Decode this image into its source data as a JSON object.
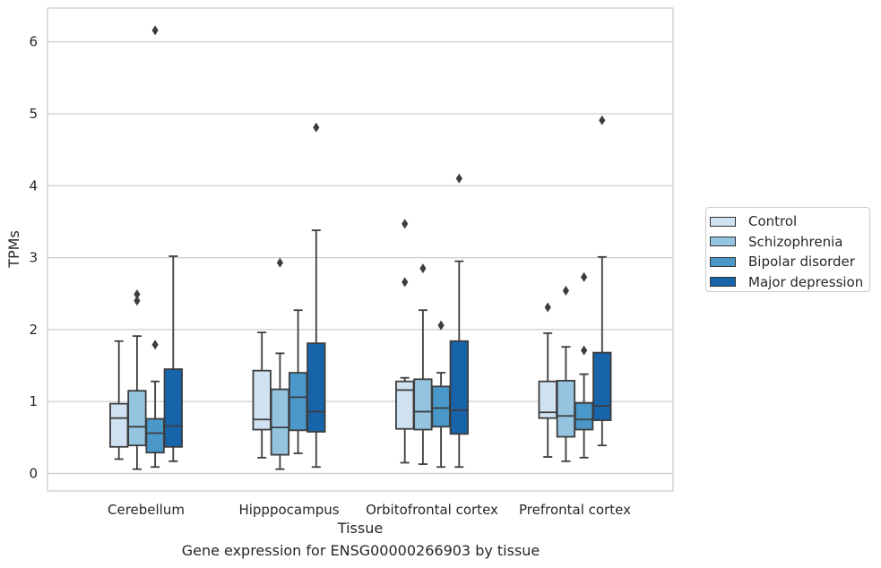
{
  "chart_data": {
    "type": "box",
    "caption": "Gene expression for ENSG00000266903 by tissue",
    "xlabel": "Tissue",
    "ylabel": "TPMs",
    "ylim": [
      -0.22,
      6.48
    ],
    "yticks": [
      0,
      1,
      2,
      3,
      4,
      5,
      6
    ],
    "grid": true,
    "legend_position": "right",
    "categories": [
      "Cerebellum",
      "Hipppocampus",
      "Orbitofrontal cortex",
      "Prefrontal cortex"
    ],
    "series": [
      {
        "name": "Control",
        "color": "#d0e1f2",
        "boxes": [
          {
            "whisker_low": 0.2,
            "q1": 0.37,
            "median": 0.77,
            "q3": 0.97,
            "whisker_high": 1.84,
            "outliers": []
          },
          {
            "whisker_low": 0.22,
            "q1": 0.61,
            "median": 0.75,
            "q3": 1.43,
            "whisker_high": 1.96,
            "outliers": []
          },
          {
            "whisker_low": 0.15,
            "q1": 0.62,
            "median": 1.16,
            "q3": 1.28,
            "whisker_high": 1.33,
            "outliers": [
              2.66,
              3.47
            ]
          },
          {
            "whisker_low": 0.23,
            "q1": 0.77,
            "median": 0.85,
            "q3": 1.28,
            "whisker_high": 1.95,
            "outliers": [
              2.31
            ]
          }
        ]
      },
      {
        "name": "Schizophrenia",
        "color": "#94c4df",
        "boxes": [
          {
            "whisker_low": 0.06,
            "q1": 0.39,
            "median": 0.65,
            "q3": 1.15,
            "whisker_high": 1.91,
            "outliers": [
              2.4,
              2.49
            ]
          },
          {
            "whisker_low": 0.06,
            "q1": 0.26,
            "median": 0.64,
            "q3": 1.17,
            "whisker_high": 1.67,
            "outliers": [
              2.93
            ]
          },
          {
            "whisker_low": 0.13,
            "q1": 0.61,
            "median": 0.86,
            "q3": 1.31,
            "whisker_high": 2.27,
            "outliers": [
              2.85
            ]
          },
          {
            "whisker_low": 0.17,
            "q1": 0.51,
            "median": 0.8,
            "q3": 1.29,
            "whisker_high": 1.76,
            "outliers": [
              2.54
            ]
          }
        ]
      },
      {
        "name": "Bipolar disorder",
        "color": "#4a98c9",
        "boxes": [
          {
            "whisker_low": 0.09,
            "q1": 0.29,
            "median": 0.56,
            "q3": 0.76,
            "whisker_high": 1.28,
            "outliers": [
              1.79,
              6.16
            ]
          },
          {
            "whisker_low": 0.28,
            "q1": 0.6,
            "median": 1.06,
            "q3": 1.4,
            "whisker_high": 2.27,
            "outliers": []
          },
          {
            "whisker_low": 0.09,
            "q1": 0.65,
            "median": 0.91,
            "q3": 1.21,
            "whisker_high": 1.4,
            "outliers": [
              2.06
            ]
          },
          {
            "whisker_low": 0.22,
            "q1": 0.61,
            "median": 0.75,
            "q3": 0.98,
            "whisker_high": 1.38,
            "outliers": [
              1.71,
              2.73
            ]
          }
        ]
      },
      {
        "name": "Major depression",
        "color": "#1764ab",
        "boxes": [
          {
            "whisker_low": 0.17,
            "q1": 0.37,
            "median": 0.66,
            "q3": 1.45,
            "whisker_high": 3.02,
            "outliers": []
          },
          {
            "whisker_low": 0.09,
            "q1": 0.58,
            "median": 0.86,
            "q3": 1.81,
            "whisker_high": 3.38,
            "outliers": [
              4.81
            ]
          },
          {
            "whisker_low": 0.09,
            "q1": 0.55,
            "median": 0.88,
            "q3": 1.84,
            "whisker_high": 2.95,
            "outliers": [
              4.1
            ]
          },
          {
            "whisker_low": 0.39,
            "q1": 0.74,
            "median": 0.94,
            "q3": 1.68,
            "whisker_high": 3.01,
            "outliers": [
              4.91
            ]
          }
        ]
      }
    ]
  }
}
